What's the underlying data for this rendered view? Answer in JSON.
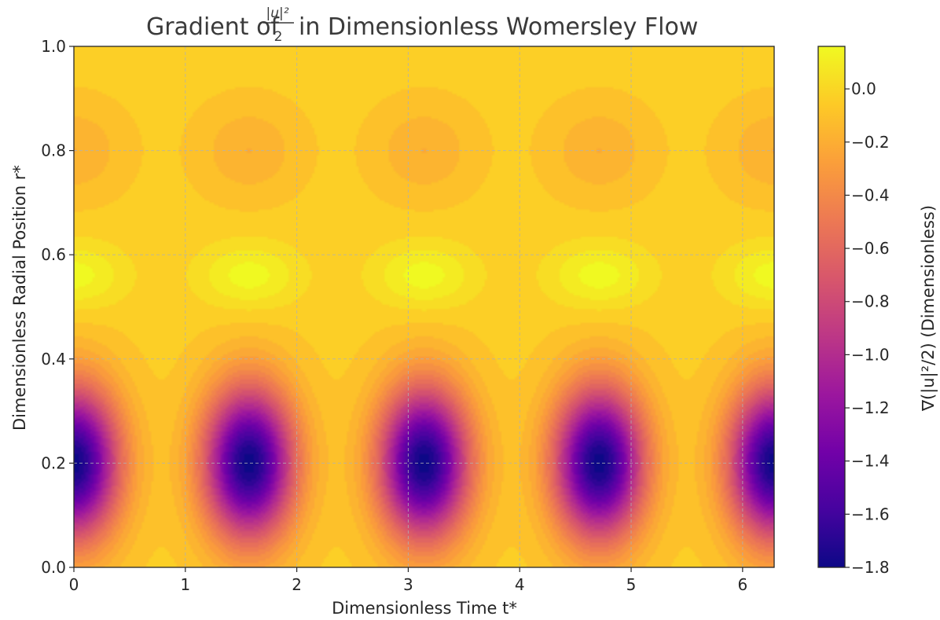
{
  "chart_data": {
    "type": "heatmap",
    "title": {
      "prefix": "Gradient of ",
      "frac_num": "|u|²",
      "frac_den": "2",
      "suffix": " in Dimensionless Womersley Flow"
    },
    "xlabel": "Dimensionless Time t*",
    "ylabel": "Dimensionless Radial Position r*",
    "colorbar_label": "∇(|u|²/2) (Dimensionless)",
    "xlim": [
      0,
      6.2832
    ],
    "ylim": [
      0,
      1
    ],
    "x_ticks": [
      0,
      1,
      2,
      3,
      4,
      5,
      6
    ],
    "x_tick_labels": [
      "0",
      "1",
      "2",
      "3",
      "4",
      "5",
      "6"
    ],
    "y_ticks": [
      0.0,
      0.2,
      0.4,
      0.6,
      0.8,
      1.0
    ],
    "y_tick_labels": [
      "0.0",
      "0.2",
      "0.4",
      "0.6",
      "0.8",
      "1.0"
    ],
    "colorbar_range": [
      -1.8,
      0.16
    ],
    "colorbar_ticks": [
      0.0,
      -0.2,
      -0.4,
      -0.6,
      -0.8,
      -1.0,
      -1.2,
      -1.4,
      -1.6,
      -1.8
    ],
    "colorbar_tick_labels": [
      "0.0",
      "−0.2",
      "−0.4",
      "−0.6",
      "−0.8",
      "−1.0",
      "−1.2",
      "−1.4",
      "−1.6",
      "−1.8"
    ],
    "colormap": "plasma",
    "grid": true,
    "field_features": [
      {
        "description": "minima (dark purple)",
        "r": 0.2,
        "t": [
          0,
          1.5708,
          3.1416,
          4.7124,
          6.2832
        ],
        "value": -1.8
      },
      {
        "description": "maxima (yellow)",
        "r": 0.56,
        "t": [
          0,
          1.5708,
          3.1416,
          4.7124,
          6.2832
        ],
        "value": 0.16
      },
      {
        "description": "weak minima (orange)",
        "r": 0.8,
        "t": [
          0,
          1.5708,
          3.1416,
          4.7124,
          6.2832
        ],
        "value": -0.2
      },
      {
        "description": "background",
        "value": -0.05
      }
    ]
  }
}
